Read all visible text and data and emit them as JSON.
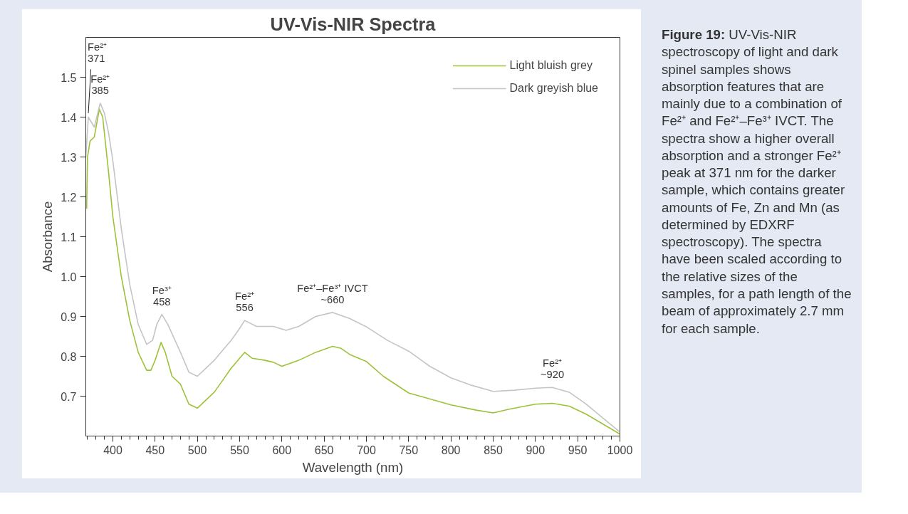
{
  "chart_data": {
    "type": "line",
    "title": "UV-Vis-NIR Spectra",
    "xlabel": "Wavelength (nm)",
    "ylabel": "Absorbance",
    "xlim": [
      368,
      1000
    ],
    "ylim": [
      0.6,
      1.6
    ],
    "xticks": [
      400,
      450,
      500,
      550,
      600,
      650,
      700,
      750,
      800,
      850,
      900,
      950,
      1000
    ],
    "yticks": [
      0.7,
      0.8,
      0.9,
      {
        "value": 1,
        "label": "1.0"
      },
      1.1,
      1.2,
      1.3,
      1.4,
      1.5
    ],
    "grid": false,
    "legend": "top right",
    "marker": "none",
    "line_style": "solid",
    "series": [
      {
        "name": "Light bluish grey",
        "color": "#9dc23a",
        "x": [
          369,
          370,
          373,
          378,
          384,
          388,
          395,
          400,
          410,
          420,
          430,
          440,
          445,
          450,
          457,
          462,
          470,
          480,
          490,
          500,
          510,
          520,
          530,
          540,
          550,
          556,
          565,
          580,
          590,
          600,
          620,
          640,
          660,
          670,
          680,
          700,
          720,
          750,
          780,
          800,
          830,
          850,
          870,
          900,
          920,
          940,
          960,
          980,
          1000
        ],
        "values": [
          1.17,
          1.3,
          1.34,
          1.35,
          1.42,
          1.4,
          1.26,
          1.15,
          1.0,
          0.89,
          0.81,
          0.765,
          0.765,
          0.79,
          0.835,
          0.81,
          0.75,
          0.73,
          0.68,
          0.67,
          0.69,
          0.71,
          0.74,
          0.77,
          0.795,
          0.81,
          0.795,
          0.79,
          0.785,
          0.775,
          0.79,
          0.81,
          0.825,
          0.82,
          0.805,
          0.787,
          0.75,
          0.708,
          0.69,
          0.678,
          0.665,
          0.658,
          0.668,
          0.68,
          0.682,
          0.675,
          0.655,
          0.63,
          0.605
        ]
      },
      {
        "name": "Dark greyish blue",
        "color": "#c4c4c4",
        "x": [
          368,
          371,
          378,
          385,
          390,
          395,
          400,
          410,
          420,
          430,
          440,
          447,
          452,
          458,
          465,
          480,
          490,
          500,
          510,
          520,
          540,
          550,
          556,
          570,
          590,
          605,
          620,
          640,
          660,
          680,
          700,
          725,
          750,
          775,
          800,
          825,
          850,
          875,
          900,
          920,
          940,
          960,
          980,
          1000
        ],
        "values": [
          1.3,
          1.4,
          1.375,
          1.435,
          1.41,
          1.36,
          1.29,
          1.12,
          0.98,
          0.88,
          0.83,
          0.84,
          0.88,
          0.905,
          0.88,
          0.81,
          0.76,
          0.75,
          0.77,
          0.79,
          0.84,
          0.87,
          0.89,
          0.875,
          0.875,
          0.865,
          0.875,
          0.9,
          0.91,
          0.895,
          0.874,
          0.84,
          0.813,
          0.775,
          0.746,
          0.727,
          0.712,
          0.715,
          0.72,
          0.722,
          0.71,
          0.68,
          0.645,
          0.61
        ]
      }
    ],
    "annotations": [
      {
        "text": "Fe²⁺\n371",
        "x": 371,
        "y": 1.4
      },
      {
        "text": "Fe²⁺\n385",
        "x": 385,
        "y": 1.435
      },
      {
        "text": "Fe³⁺\n458",
        "x": 458,
        "y": 0.905
      },
      {
        "text": "Fe²⁺\n556",
        "x": 556,
        "y": 0.89
      },
      {
        "text": "Fe²⁺–Fe³⁺ IVCT\n~660",
        "x": 660,
        "y": 0.91
      },
      {
        "text": "Fe²⁺\n~920",
        "x": 920,
        "y": 0.722
      },
      "Figure 19: UV-Vis-NIR spectroscopy of light and dark spinel samples shows absorption features that are mainly due to a combination of Fe²⁺ and Fe²⁺–Fe³⁺ IVCT. The spectra show a higher overall absorption and a stronger Fe²⁺ peak at 371 nm for the darker sample, which contains greater amounts of Fe, Zn and Mn (as determined by EDXRF spectroscopy). The spectra have been scaled according to the relative sizes of the samples, for a path length of the beam of approximately 2.7 mm for each sample."
    ]
  }
}
